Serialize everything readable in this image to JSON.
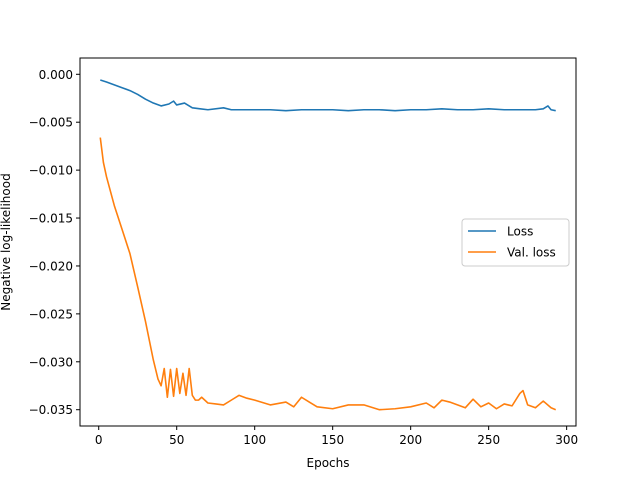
{
  "chart_data": {
    "type": "line",
    "title": "",
    "xlabel": "Epochs",
    "ylabel": "Negative log-likelihood",
    "xlim": [
      -12,
      306
    ],
    "ylim": [
      -0.0367,
      0.0017
    ],
    "xticks": [
      0,
      50,
      100,
      150,
      200,
      250,
      300
    ],
    "xtick_labels": [
      "0",
      "50",
      "100",
      "150",
      "200",
      "250",
      "300"
    ],
    "yticks": [
      0.0,
      -0.005,
      -0.01,
      -0.015,
      -0.02,
      -0.025,
      -0.03,
      -0.035
    ],
    "ytick_labels": [
      "0.000",
      "−0.005",
      "−0.010",
      "−0.015",
      "−0.020",
      "−0.025",
      "−0.030",
      "−0.035"
    ],
    "grid": false,
    "legend_position": "center-right",
    "series": [
      {
        "name": "Loss",
        "color": "#1f77b4",
        "x": [
          1,
          5,
          10,
          15,
          20,
          25,
          30,
          35,
          40,
          45,
          48,
          50,
          55,
          60,
          65,
          70,
          80,
          85,
          90,
          100,
          110,
          120,
          130,
          140,
          150,
          160,
          170,
          180,
          190,
          200,
          210,
          220,
          230,
          240,
          250,
          260,
          270,
          280,
          285,
          288,
          290,
          293
        ],
        "y": [
          -0.0006,
          -0.0008,
          -0.0011,
          -0.0014,
          -0.0017,
          -0.0021,
          -0.0026,
          -0.003,
          -0.0033,
          -0.0031,
          -0.0028,
          -0.0032,
          -0.003,
          -0.0035,
          -0.0036,
          -0.0037,
          -0.0035,
          -0.0037,
          -0.0037,
          -0.0037,
          -0.0037,
          -0.0038,
          -0.0037,
          -0.0037,
          -0.0037,
          -0.0038,
          -0.0037,
          -0.0037,
          -0.0038,
          -0.0037,
          -0.0037,
          -0.0036,
          -0.0037,
          -0.0037,
          -0.0036,
          -0.0037,
          -0.0037,
          -0.0037,
          -0.0036,
          -0.0033,
          -0.0037,
          -0.0038
        ]
      },
      {
        "name": "Val. loss",
        "color": "#ff7f0e",
        "x": [
          1,
          3,
          5,
          10,
          15,
          20,
          25,
          30,
          35,
          38,
          40,
          42,
          44,
          46,
          48,
          50,
          52,
          54,
          56,
          58,
          60,
          62,
          64,
          66,
          70,
          75,
          80,
          85,
          90,
          95,
          100,
          110,
          120,
          125,
          130,
          135,
          140,
          150,
          160,
          170,
          180,
          190,
          200,
          210,
          215,
          220,
          225,
          230,
          235,
          240,
          245,
          250,
          255,
          260,
          265,
          270,
          272,
          275,
          280,
          285,
          290,
          293
        ],
        "y": [
          -0.0066,
          -0.0092,
          -0.0107,
          -0.0137,
          -0.0162,
          -0.0187,
          -0.0222,
          -0.0258,
          -0.0298,
          -0.0318,
          -0.0325,
          -0.0307,
          -0.0337,
          -0.0308,
          -0.0336,
          -0.0307,
          -0.0333,
          -0.0312,
          -0.0335,
          -0.0307,
          -0.0335,
          -0.034,
          -0.034,
          -0.0337,
          -0.0343,
          -0.0344,
          -0.0345,
          -0.034,
          -0.0335,
          -0.0338,
          -0.034,
          -0.0345,
          -0.0342,
          -0.0347,
          -0.0337,
          -0.0342,
          -0.0347,
          -0.0349,
          -0.0345,
          -0.0345,
          -0.035,
          -0.0349,
          -0.0347,
          -0.0343,
          -0.0348,
          -0.034,
          -0.0342,
          -0.0345,
          -0.0348,
          -0.0339,
          -0.0347,
          -0.0343,
          -0.0349,
          -0.0344,
          -0.0346,
          -0.0333,
          -0.033,
          -0.0345,
          -0.0348,
          -0.0341,
          -0.0348,
          -0.035
        ]
      }
    ]
  }
}
